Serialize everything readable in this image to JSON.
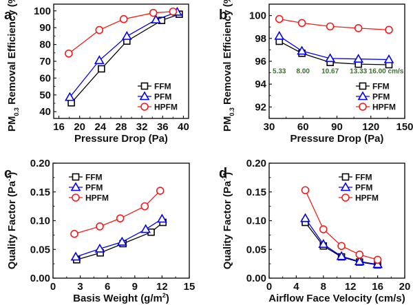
{
  "chart_data": [
    {
      "id": "a",
      "type": "line",
      "panel_label": "a",
      "title": "",
      "xlabel": "Pressure Drop (Pa)",
      "ylabel": "PM0.3 Removal Efficiency (%)",
      "ylabel_parts": {
        "pre": "PM",
        "sub": "0.3",
        "post": " Removal Efficiency (%)"
      },
      "xlim": [
        15,
        41
      ],
      "ylim": [
        36,
        104
      ],
      "xticks": [
        16,
        20,
        24,
        28,
        32,
        36,
        40
      ],
      "yticks": [
        40,
        50,
        60,
        70,
        80,
        90,
        100
      ],
      "xminor": [
        18,
        22,
        26,
        30,
        34,
        38
      ],
      "yminor": [
        45,
        55,
        65,
        75,
        85,
        95
      ],
      "legend_position": "bottom-right",
      "series": [
        {
          "name": "FFM",
          "color": "#000000",
          "marker": "square",
          "x": [
            18.4,
            24.2,
            29.1,
            35.8,
            39.2
          ],
          "y": [
            45.3,
            65.5,
            82.0,
            94.3,
            98.0
          ]
        },
        {
          "name": "PFM",
          "color": "#0000ee",
          "marker": "triangle",
          "x": [
            18.1,
            23.8,
            29.1,
            34.7,
            38.8
          ],
          "y": [
            48.6,
            70.5,
            84.9,
            94.7,
            99.3
          ]
        },
        {
          "name": "HPFM",
          "color": "#ee1c1c",
          "marker": "circle",
          "x": [
            17.9,
            23.8,
            28.5,
            34.2,
            38.0
          ],
          "y": [
            74.6,
            88.6,
            95.1,
            98.8,
            99.6
          ]
        }
      ]
    },
    {
      "id": "b",
      "type": "line",
      "panel_label": "b",
      "title": "",
      "xlabel": "Pressure Drop (Pa)",
      "ylabel": "PM0.3 Removal Efficiency (%)",
      "ylabel_parts": {
        "pre": "PM",
        "sub": "0.3",
        "post": " Removal Efficiency (%)"
      },
      "xlim": [
        30,
        150
      ],
      "ylim": [
        91,
        101
      ],
      "xticks": [
        30,
        60,
        90,
        120,
        150
      ],
      "yticks": [
        92,
        94,
        96,
        98,
        100
      ],
      "xminor": [
        45,
        75,
        105,
        135
      ],
      "yminor": [
        93,
        95,
        97,
        99
      ],
      "legend_position": "bottom-right",
      "annotations": [
        {
          "text": "5.33",
          "x": 39,
          "y": 95.2
        },
        {
          "text": "8.00",
          "x": 60,
          "y": 95.2
        },
        {
          "text": "10.67",
          "x": 84,
          "y": 95.2
        },
        {
          "text": "13.33",
          "x": 109,
          "y": 95.2
        },
        {
          "text": "16.00 cm/s",
          "x": 136,
          "y": 95.2
        }
      ],
      "series": [
        {
          "name": "FFM",
          "color": "#000000",
          "marker": "square",
          "x": [
            39,
            59,
            84,
            109,
            136
          ],
          "y": [
            97.75,
            96.7,
            95.9,
            95.75,
            95.7
          ]
        },
        {
          "name": "PFM",
          "color": "#0000ee",
          "marker": "triangle",
          "x": [
            39,
            59,
            84,
            109,
            136
          ],
          "y": [
            98.2,
            96.9,
            96.25,
            96.2,
            96.15
          ]
        },
        {
          "name": "HPFM",
          "color": "#ee1c1c",
          "marker": "circle",
          "x": [
            39,
            59,
            84,
            109,
            136
          ],
          "y": [
            99.7,
            99.35,
            99.05,
            98.9,
            98.75
          ]
        }
      ]
    },
    {
      "id": "c",
      "type": "line",
      "panel_label": "c",
      "title": "",
      "xlabel": "Basis Weight (g/m2)",
      "xlabel_parts": {
        "pre": "Basis Weight (g/m",
        "sup": "2",
        "post": ")"
      },
      "ylabel": "Quality Factor (Pa-1)",
      "ylabel_parts": {
        "pre": "Quality Factor (Pa",
        "sup": "-1",
        "post": ")"
      },
      "xlim": [
        0,
        15
      ],
      "ylim": [
        0,
        0.2
      ],
      "xticks": [
        0,
        3,
        6,
        9,
        12,
        15
      ],
      "xticklabels": [
        "0",
        "3",
        "6",
        "9",
        "12",
        "15"
      ],
      "yticks": [
        0,
        0.05,
        0.1,
        0.15,
        0.2
      ],
      "yticklabels": [
        "0.00",
        "0.05",
        "0.10",
        "0.15",
        "0.20"
      ],
      "xminor": [
        1.5,
        4.5,
        7.5,
        10.5,
        13.5
      ],
      "yminor": [
        0.025,
        0.075,
        0.125,
        0.175
      ],
      "legend_position": "top-left",
      "series": [
        {
          "name": "FFM",
          "color": "#000000",
          "marker": "square",
          "x": [
            2.6,
            5.2,
            7.7,
            10.8,
            12.1
          ],
          "y": [
            0.032,
            0.044,
            0.06,
            0.08,
            0.097
          ]
        },
        {
          "name": "PFM",
          "color": "#0000ee",
          "marker": "triangle",
          "x": [
            2.5,
            5.15,
            7.6,
            10.2,
            12.0
          ],
          "y": [
            0.037,
            0.051,
            0.063,
            0.085,
            0.103
          ]
        },
        {
          "name": "HPFM",
          "color": "#ee1c1c",
          "marker": "circle",
          "x": [
            2.35,
            5.15,
            7.4,
            10.1,
            11.8
          ],
          "y": [
            0.077,
            0.09,
            0.104,
            0.125,
            0.152
          ]
        }
      ]
    },
    {
      "id": "d",
      "type": "line",
      "panel_label": "d",
      "title": "",
      "xlabel": "Airflow Face Velocity (cm/s)",
      "ylabel": "Quality Factor (Pa-1)",
      "ylabel_parts": {
        "pre": "Quality Factor (Pa",
        "sup": "-1",
        "post": ")"
      },
      "xlim": [
        0,
        20
      ],
      "ylim": [
        0,
        0.2
      ],
      "xticks": [
        0,
        4,
        8,
        12,
        16,
        20
      ],
      "xticklabels": [
        "0",
        "4",
        "8",
        "12",
        "16",
        "20"
      ],
      "yticks": [
        0,
        0.05,
        0.1,
        0.15,
        0.2
      ],
      "yticklabels": [
        "0.00",
        "0.05",
        "0.10",
        "0.15",
        "0.20"
      ],
      "xminor": [
        2,
        6,
        10,
        14,
        18
      ],
      "yminor": [
        0.025,
        0.075,
        0.125,
        0.175
      ],
      "legend_position": "top-right",
      "series": [
        {
          "name": "FFM",
          "color": "#000000",
          "marker": "square",
          "x": [
            5.33,
            8.0,
            10.67,
            13.33,
            16.0
          ],
          "y": [
            0.097,
            0.056,
            0.037,
            0.028,
            0.023
          ]
        },
        {
          "name": "PFM",
          "color": "#0000ee",
          "marker": "triangle",
          "x": [
            5.33,
            8.0,
            10.67,
            13.33,
            16.0
          ],
          "y": [
            0.104,
            0.059,
            0.038,
            0.029,
            0.024
          ]
        },
        {
          "name": "HPFM",
          "color": "#ee1c1c",
          "marker": "circle",
          "x": [
            5.33,
            8.0,
            10.67,
            13.33,
            16.0
          ],
          "y": [
            0.153,
            0.085,
            0.056,
            0.041,
            0.032
          ]
        }
      ]
    }
  ]
}
